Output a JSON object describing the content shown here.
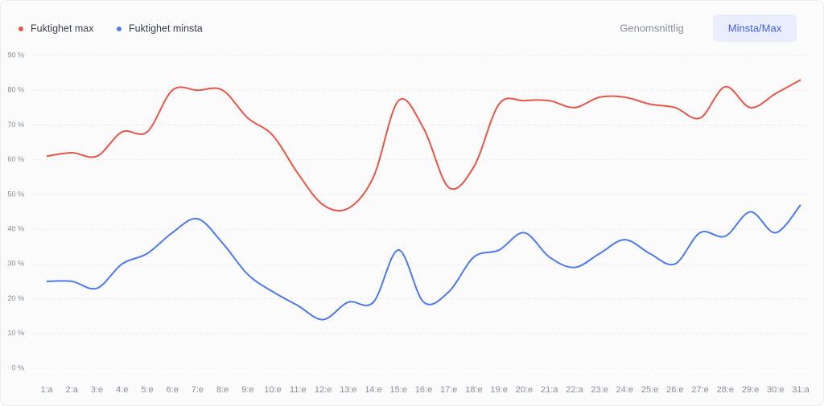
{
  "chart_data": {
    "type": "line",
    "buttons": [
      "Genomsnittlig",
      "Minsta/Max"
    ],
    "active_button": 1,
    "categories": [
      "1:a",
      "2:a",
      "3:e",
      "4:e",
      "5:e",
      "6:e",
      "7:e",
      "8:e",
      "9:e",
      "10:e",
      "11:e",
      "12:e",
      "13:e",
      "14:e",
      "15:e",
      "16:e",
      "17:e",
      "18:e",
      "19:e",
      "20:e",
      "21:a",
      "22:a",
      "23:e",
      "24:e",
      "25:e",
      "26:e",
      "27:e",
      "28:e",
      "29:e",
      "30:e",
      "31:a"
    ],
    "series": [
      {
        "name": "Fuktighet max",
        "color": "#e5574b",
        "values": [
          61,
          62,
          61,
          68,
          68,
          80,
          80,
          80,
          72,
          67,
          56,
          47,
          46,
          55,
          77,
          69,
          52,
          58,
          76,
          77,
          77,
          75,
          78,
          78,
          76,
          75,
          72,
          81,
          75,
          79,
          83
        ]
      },
      {
        "name": "Fuktighet minsta",
        "color": "#4f7ae8",
        "values": [
          25,
          25,
          23,
          30,
          33,
          39,
          43,
          36,
          27,
          22,
          18,
          14,
          19,
          19,
          34,
          19,
          22,
          32,
          34,
          39,
          32,
          29,
          33,
          37,
          33,
          30,
          39,
          38,
          45,
          39,
          47
        ]
      }
    ],
    "ylim": [
      0,
      90
    ],
    "yticks": [
      {
        "value": 0,
        "label": "0 %"
      },
      {
        "value": 10,
        "label": "10 %"
      },
      {
        "value": 20,
        "label": "20 %"
      },
      {
        "value": 30,
        "label": "30 %"
      },
      {
        "value": 40,
        "label": "40 %"
      },
      {
        "value": 50,
        "label": "50 %"
      },
      {
        "value": 60,
        "label": "60 %"
      },
      {
        "value": 70,
        "label": "70 %"
      },
      {
        "value": 80,
        "label": "80 %"
      },
      {
        "value": 90,
        "label": "90 %"
      }
    ],
    "grid": true,
    "smooth": true
  }
}
